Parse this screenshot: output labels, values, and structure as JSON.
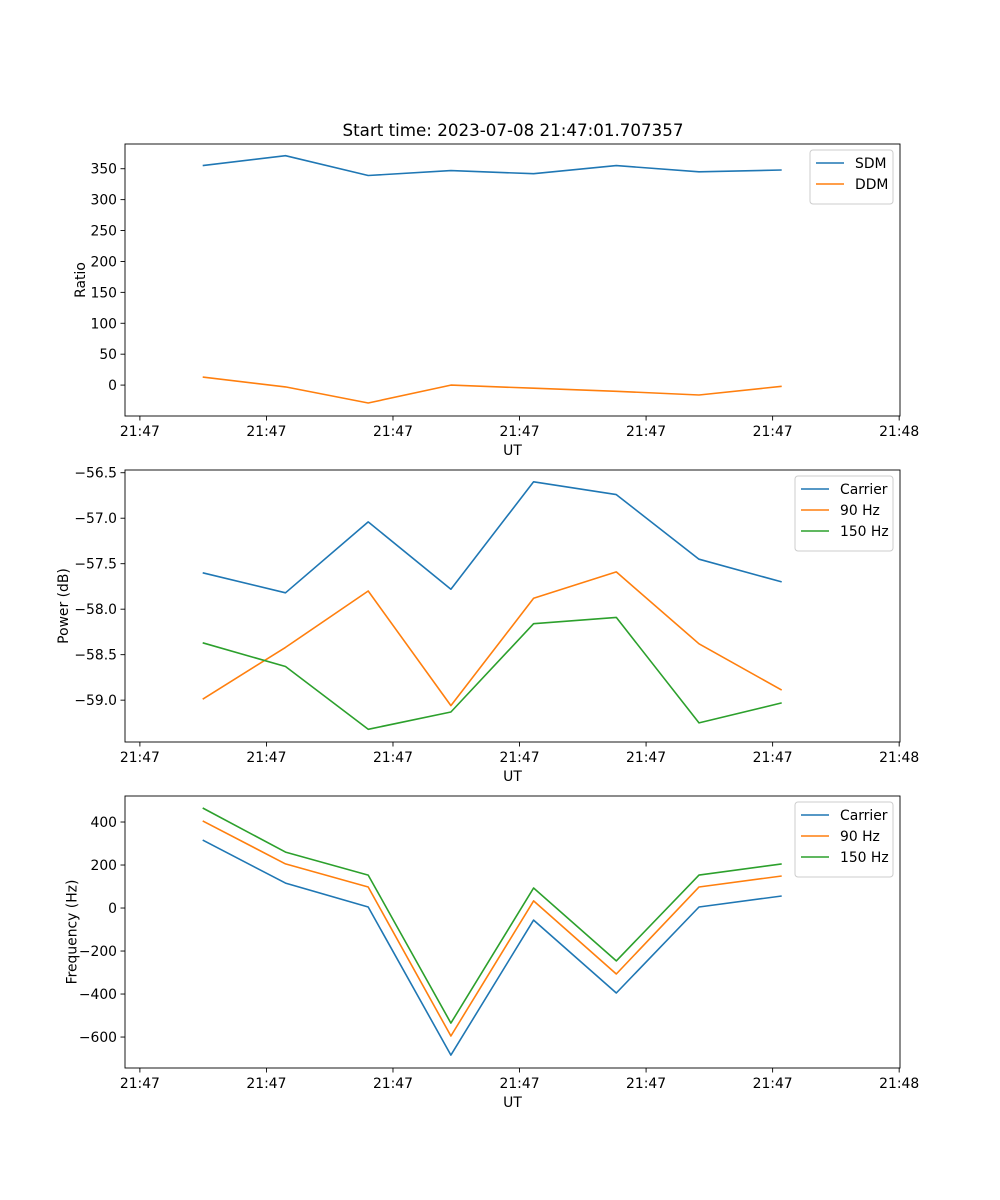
{
  "title": "Start time: 2023-07-08 21:47:01.707357",
  "colors": {
    "blue": "#1f77b4",
    "orange": "#ff7f0e",
    "green": "#2ca02c"
  },
  "chart_data": [
    {
      "type": "line",
      "xlabel": "UT",
      "ylabel": "Ratio",
      "x": [
        0,
        1,
        2,
        3,
        4,
        5,
        6,
        7
      ],
      "xlim": [
        -0.94,
        8.43
      ],
      "xticks": [
        -0.76,
        0.77,
        2.3,
        3.83,
        5.36,
        6.89,
        8.42
      ],
      "xticklabels": [
        "21:47",
        "21:47",
        "21:47",
        "21:47",
        "21:47",
        "21:47",
        "21:48"
      ],
      "ylim": [
        -50,
        390
      ],
      "yticks": [
        0,
        50,
        100,
        150,
        200,
        250,
        300,
        350
      ],
      "yticklabels": [
        "0",
        "50",
        "100",
        "150",
        "200",
        "250",
        "300",
        "350"
      ],
      "legend": "top-right",
      "series": [
        {
          "name": "SDM",
          "color": "#1f77b4",
          "values": [
            355,
            371,
            339,
            347,
            342,
            355,
            345,
            348
          ]
        },
        {
          "name": "DDM",
          "color": "#ff7f0e",
          "values": [
            13,
            -3,
            -29,
            0,
            -5,
            -10,
            -16,
            -2
          ]
        }
      ]
    },
    {
      "type": "line",
      "xlabel": "UT",
      "ylabel": "Power (dB)",
      "x": [
        0,
        1,
        2,
        3,
        4,
        5,
        6,
        7
      ],
      "xlim": [
        -0.94,
        8.43
      ],
      "xticks": [
        -0.76,
        0.77,
        2.3,
        3.83,
        5.36,
        6.89,
        8.42
      ],
      "xticklabels": [
        "21:47",
        "21:47",
        "21:47",
        "21:47",
        "21:47",
        "21:47",
        "21:48"
      ],
      "ylim": [
        -59.46,
        -56.47
      ],
      "yticks": [
        -59.0,
        -58.5,
        -58.0,
        -57.5,
        -57.0,
        -56.5
      ],
      "yticklabels": [
        "−59.0",
        "−58.5",
        "−58.0",
        "−57.5",
        "−57.0",
        "−56.5"
      ],
      "legend": "top-right",
      "series": [
        {
          "name": "Carrier",
          "color": "#1f77b4",
          "values": [
            -57.6,
            -57.82,
            -57.04,
            -57.78,
            -56.6,
            -56.74,
            -57.45,
            -57.7
          ]
        },
        {
          "name": "90 Hz",
          "color": "#ff7f0e",
          "values": [
            -58.99,
            -58.42,
            -57.8,
            -59.06,
            -57.88,
            -57.59,
            -58.38,
            -58.89
          ]
        },
        {
          "name": "150 Hz",
          "color": "#2ca02c",
          "values": [
            -58.37,
            -58.63,
            -59.32,
            -59.13,
            -58.16,
            -58.09,
            -59.25,
            -59.03
          ]
        }
      ]
    },
    {
      "type": "line",
      "xlabel": "UT",
      "ylabel": "Frequency (Hz)",
      "x": [
        0,
        1,
        2,
        3,
        4,
        5,
        6,
        7
      ],
      "xlim": [
        -0.94,
        8.43
      ],
      "xticks": [
        -0.76,
        0.77,
        2.3,
        3.83,
        5.36,
        6.89,
        8.42
      ],
      "xticklabels": [
        "21:47",
        "21:47",
        "21:47",
        "21:47",
        "21:47",
        "21:47",
        "21:48"
      ],
      "ylim": [
        -744,
        521
      ],
      "yticks": [
        -600,
        -400,
        -200,
        0,
        200,
        400
      ],
      "yticklabels": [
        "−600",
        "−400",
        "−200",
        "0",
        "200",
        "400"
      ],
      "legend": "top-right",
      "series": [
        {
          "name": "Carrier",
          "color": "#1f77b4",
          "values": [
            316,
            116,
            5,
            -684,
            -56,
            -395,
            5,
            56
          ]
        },
        {
          "name": "90 Hz",
          "color": "#ff7f0e",
          "values": [
            405,
            205,
            98,
            -595,
            33,
            -307,
            98,
            149
          ]
        },
        {
          "name": "150 Hz",
          "color": "#2ca02c",
          "values": [
            465,
            260,
            153,
            -535,
            93,
            -246,
            153,
            205
          ]
        }
      ]
    }
  ]
}
